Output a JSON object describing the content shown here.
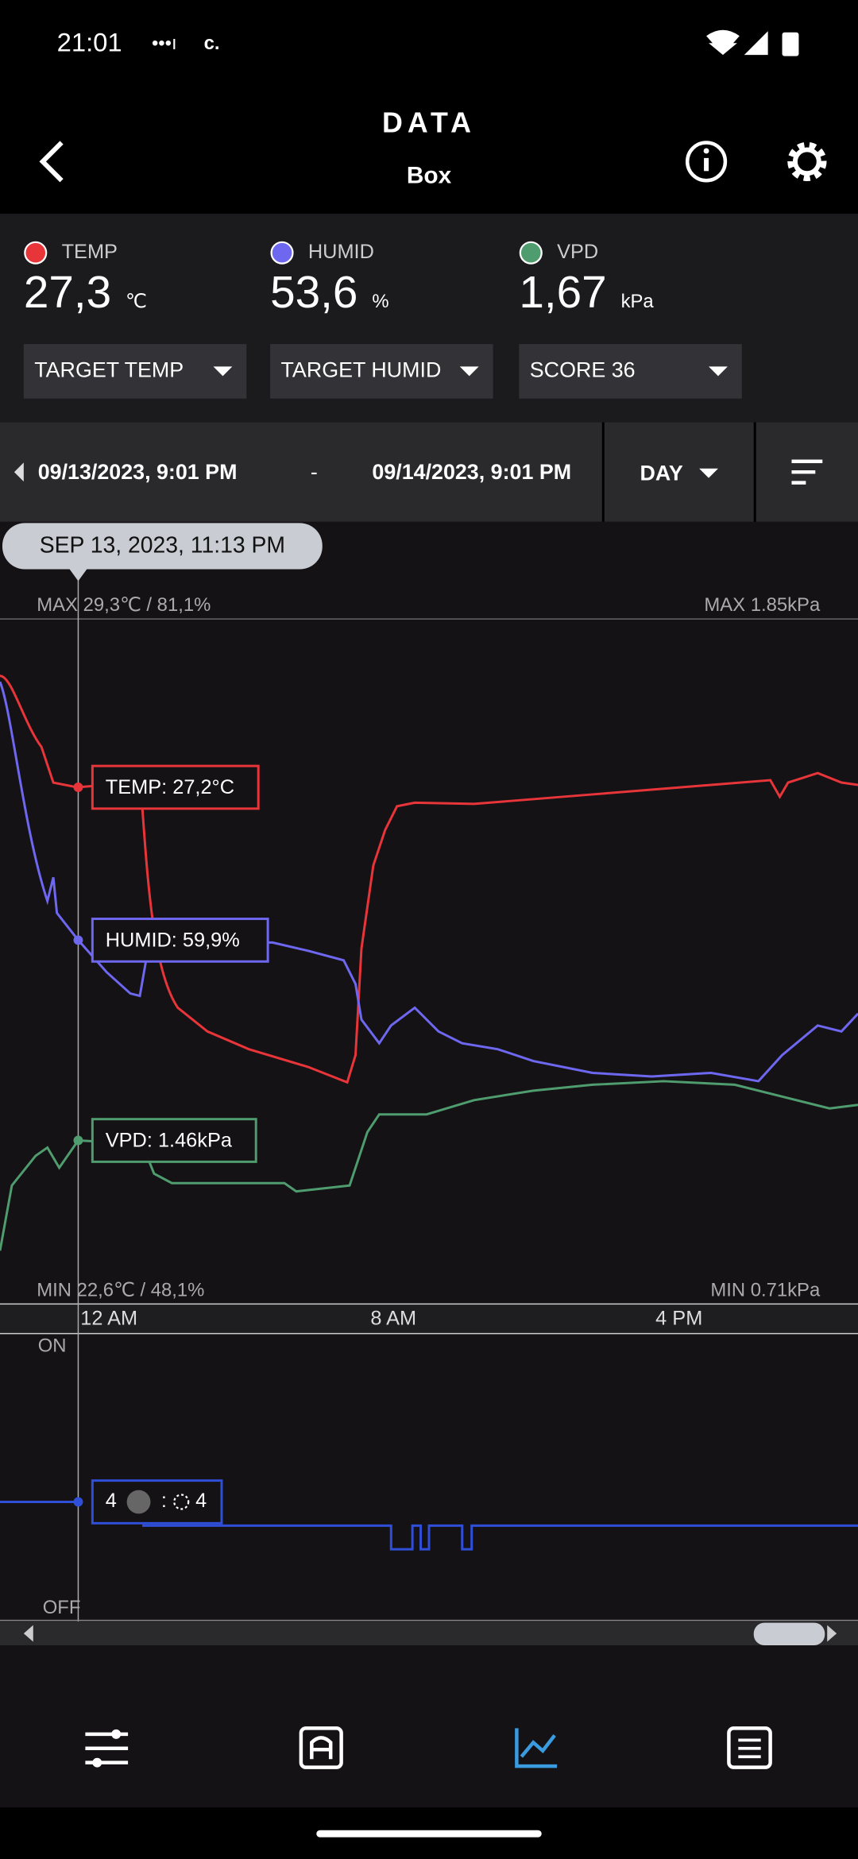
{
  "status": {
    "time": "21:01",
    "carrier": "c."
  },
  "header": {
    "title": "DATA",
    "subtitle": "Box"
  },
  "readings": [
    {
      "label": "TEMP",
      "value": "27,3",
      "unit": "℃"
    },
    {
      "label": "HUMID",
      "value": "53,6",
      "unit": "%"
    },
    {
      "label": "VPD",
      "value": "1,67",
      "unit": "kPa"
    }
  ],
  "dropdowns": [
    "TARGET TEMP",
    "TARGET HUMID",
    "SCORE 36"
  ],
  "range": {
    "start": "09/13/2023, 9:01 PM",
    "separator": "-",
    "end": "09/14/2023, 9:01 PM",
    "period": "DAY"
  },
  "chart": {
    "tooltip": "SEP 13, 2023, 11:13 PM",
    "max_left": "MAX 29,3℃ / 81,1%",
    "max_right": "MAX 1.85kPa",
    "min_left": "MIN 22,6℃ / 48,1%",
    "min_right": "MIN 0.71kPa",
    "callouts": [
      "TEMP: 27,2°C",
      "HUMID: 59,9%",
      "VPD: 1.46kPa"
    ],
    "x_labels": [
      "12 AM",
      "8 AM",
      "4 PM"
    ]
  },
  "device": {
    "on": "ON",
    "off": "OFF",
    "left": "4",
    "separator": ":",
    "right": "4"
  }
}
